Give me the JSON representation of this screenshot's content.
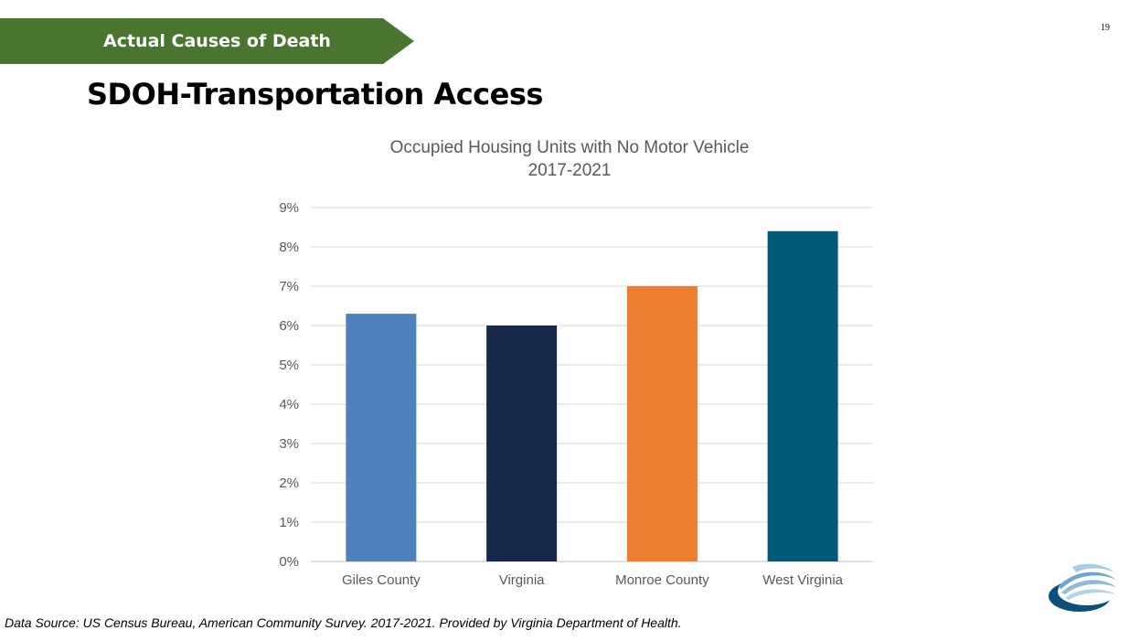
{
  "slide": {
    "section_banner": "Actual Causes of Death",
    "slide_number": "19",
    "title": "SDOH-Transportation Access",
    "source_note": "Data Source: US Census Bureau, American Community Survey. 2017-2021. Provided by Virginia Department of Health."
  },
  "chart_data": {
    "type": "bar",
    "title": "Occupied Housing Units with No Motor Vehicle",
    "subtitle": "2017-2021",
    "categories": [
      "Giles County",
      "Virginia",
      "Monroe County",
      "West Virginia"
    ],
    "values": [
      6.3,
      6.0,
      7.0,
      8.4
    ],
    "colors": [
      "#4f81bd",
      "#17294a",
      "#ed7d31",
      "#005a78"
    ],
    "xlabel": "",
    "ylabel": "",
    "ylim": [
      0,
      9
    ],
    "yticks": [
      "0%",
      "1%",
      "2%",
      "3%",
      "4%",
      "5%",
      "6%",
      "7%",
      "8%",
      "9%"
    ],
    "grid": true,
    "legend": "none"
  },
  "colors": {
    "banner": "#4a7530",
    "gridline": "#d9d9d9",
    "axis_text": "#595959"
  }
}
